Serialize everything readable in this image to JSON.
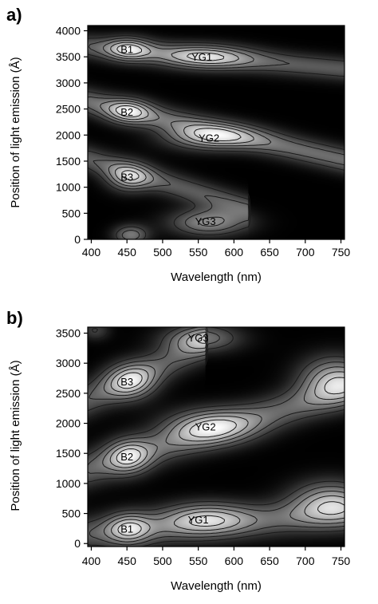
{
  "colors": {
    "background": "#000000",
    "emission_high": "#ffffff",
    "contour_line": "#1a1a1a",
    "text": "#000000"
  },
  "chart_data": [
    {
      "panel_label": "a)",
      "type": "heatmap",
      "colormap": "grayscale (black = low, white = high)",
      "xlabel": "Wavelength (nm)",
      "ylabel": "Position of light emission (Å)",
      "xlim": [
        395,
        755
      ],
      "ylim": [
        0,
        4100
      ],
      "xticks": [
        400,
        450,
        500,
        550,
        600,
        650,
        700,
        750
      ],
      "yticks": [
        0,
        500,
        1000,
        1500,
        2000,
        2500,
        3000,
        3500,
        4000
      ],
      "peaks": [
        {
          "label": "B1",
          "x": 450,
          "y": 3650
        },
        {
          "label": "YG1",
          "x": 555,
          "y": 3500
        },
        {
          "label": "B2",
          "x": 450,
          "y": 2450
        },
        {
          "label": "YG2",
          "x": 565,
          "y": 1950
        },
        {
          "label": "B3",
          "x": 450,
          "y": 1200
        },
        {
          "label": "YG3",
          "x": 560,
          "y": 350
        }
      ],
      "intensity_model": {
        "ridges": [
          {
            "x_center": 440,
            "y_center": 3650,
            "slope": -1.2,
            "sigma_y": 170,
            "x_end": 760,
            "amp": 0.55
          },
          {
            "x_center": 440,
            "y_center": 2500,
            "slope": -3.1,
            "sigma_y": 190,
            "x_end": 760,
            "amp": 0.65
          },
          {
            "x_center": 440,
            "y_center": 1350,
            "slope": -4.2,
            "sigma_y": 190,
            "x_end": 620,
            "amp": 0.55
          }
        ],
        "blobs": [
          {
            "x": 452,
            "y": 3650,
            "sx": 22,
            "sy": 160,
            "amp": 0.75
          },
          {
            "x": 560,
            "y": 3500,
            "sx": 45,
            "sy": 170,
            "amp": 0.7
          },
          {
            "x": 452,
            "y": 2450,
            "sx": 22,
            "sy": 170,
            "amp": 0.7
          },
          {
            "x": 565,
            "y": 1950,
            "sx": 45,
            "sy": 180,
            "amp": 0.8
          },
          {
            "x": 452,
            "y": 1180,
            "sx": 22,
            "sy": 200,
            "amp": 0.75
          },
          {
            "x": 565,
            "y": 320,
            "sx": 40,
            "sy": 190,
            "amp": 0.8
          },
          {
            "x": 455,
            "y": 80,
            "sx": 18,
            "sy": 140,
            "amp": 0.7
          }
        ]
      }
    },
    {
      "panel_label": "b)",
      "type": "heatmap",
      "colormap": "grayscale (black = low, white = high)",
      "xlabel": "Wavelength (nm)",
      "ylabel": "Position of light emission (Å)",
      "xlim": [
        395,
        755
      ],
      "ylim": [
        -50,
        3600
      ],
      "xticks": [
        400,
        450,
        500,
        550,
        600,
        650,
        700,
        750
      ],
      "yticks": [
        0,
        500,
        1000,
        1500,
        2000,
        2500,
        3000,
        3500
      ],
      "peaks": [
        {
          "label": "B1",
          "x": 450,
          "y": 250
        },
        {
          "label": "YG1",
          "x": 550,
          "y": 400
        },
        {
          "label": "B2",
          "x": 450,
          "y": 1450
        },
        {
          "label": "YG2",
          "x": 560,
          "y": 1950
        },
        {
          "label": "B3",
          "x": 450,
          "y": 2700
        },
        {
          "label": "YG3",
          "x": 550,
          "y": 3430
        }
      ],
      "intensity_model": {
        "ridges": [
          {
            "x_center": 440,
            "y_center": 200,
            "slope": 0.9,
            "sigma_y": 210,
            "x_end": 760,
            "amp": 0.55
          },
          {
            "x_center": 440,
            "y_center": 1400,
            "slope": 3.6,
            "sigma_y": 230,
            "x_end": 760,
            "amp": 0.6
          },
          {
            "x_center": 430,
            "y_center": 2600,
            "slope": 5.5,
            "sigma_y": 230,
            "x_end": 560,
            "amp": 0.55
          }
        ],
        "blobs": [
          {
            "x": 452,
            "y": 250,
            "sx": 22,
            "sy": 190,
            "amp": 0.75
          },
          {
            "x": 560,
            "y": 420,
            "sx": 45,
            "sy": 200,
            "amp": 0.75
          },
          {
            "x": 735,
            "y": 700,
            "sx": 40,
            "sy": 260,
            "amp": 0.85
          },
          {
            "x": 452,
            "y": 1450,
            "sx": 22,
            "sy": 210,
            "amp": 0.75
          },
          {
            "x": 565,
            "y": 1950,
            "sx": 45,
            "sy": 220,
            "amp": 0.8
          },
          {
            "x": 740,
            "y": 2750,
            "sx": 35,
            "sy": 280,
            "amp": 0.85
          },
          {
            "x": 455,
            "y": 2700,
            "sx": 25,
            "sy": 220,
            "amp": 0.8
          },
          {
            "x": 555,
            "y": 3420,
            "sx": 40,
            "sy": 170,
            "amp": 0.7
          },
          {
            "x": 405,
            "y": 3550,
            "sx": 15,
            "sy": 120,
            "amp": 0.4
          }
        ]
      }
    }
  ]
}
